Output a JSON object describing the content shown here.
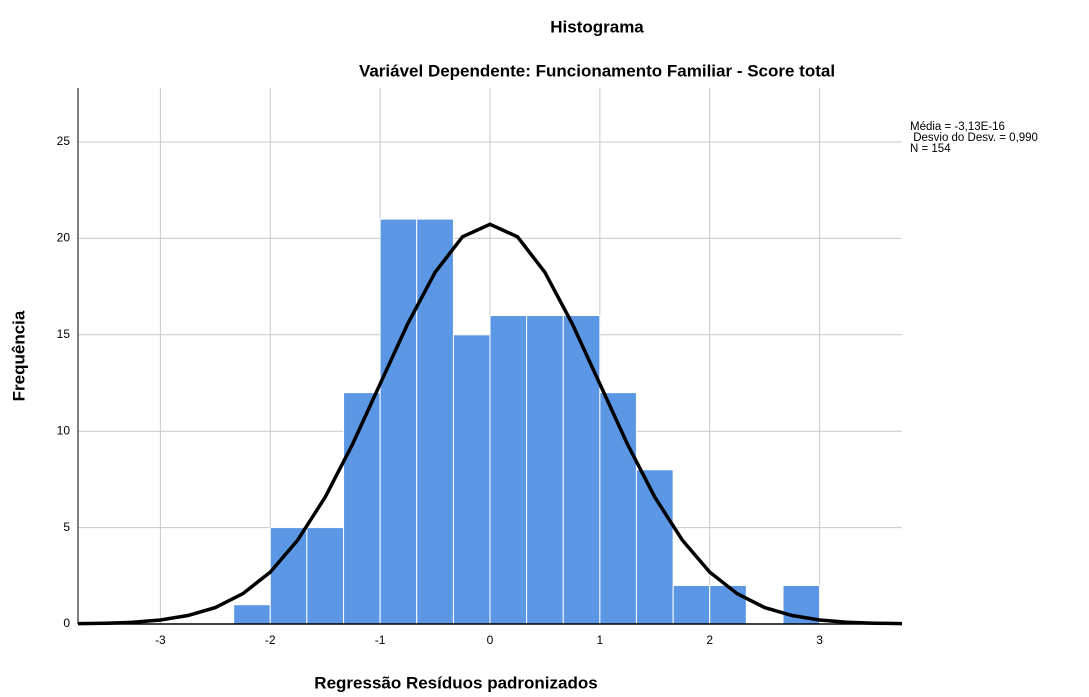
{
  "chart_data": {
    "type": "histogram",
    "title": "Histograma",
    "subtitle": "Variável Dependente: Funcionamento Familiar - Score total",
    "x_label": "Regressão Resíduos padronizados",
    "y_label": "Frequência",
    "bins": [
      -2.333,
      -2,
      -1.667,
      -1.333,
      -1,
      -0.667,
      -0.333,
      0,
      0.333,
      0.667,
      1,
      1.333,
      1.667,
      2,
      2.333,
      2.667,
      3
    ],
    "values": [
      1,
      5,
      5,
      12,
      21,
      21,
      15,
      16,
      16,
      16,
      12,
      8,
      2,
      2,
      0,
      2
    ],
    "color": "#5b97e5",
    "curve": {
      "color": "#000000",
      "x": [
        -3.75,
        -3.5,
        -3.25,
        -3,
        -2.75,
        -2.5,
        -2.25,
        -2,
        -1.75,
        -1.5,
        -1.25,
        -1,
        -0.75,
        -0.5,
        -0.25,
        0,
        0.25,
        0.5,
        0.75,
        1,
        1.25,
        1.5,
        1.75,
        2,
        2.25,
        2.5,
        2.75,
        3,
        3.25,
        3.5,
        3.75
      ],
      "values": [
        0.02,
        0.04,
        0.09,
        0.21,
        0.44,
        0.85,
        1.57,
        2.69,
        4.35,
        6.58,
        9.34,
        12.45,
        15.56,
        18.24,
        20.08,
        20.73,
        20.08,
        18.24,
        15.56,
        12.45,
        9.34,
        6.58,
        4.35,
        2.69,
        1.57,
        0.85,
        0.44,
        0.21,
        0.09,
        0.04,
        0.02
      ]
    },
    "stats": [
      "Média = -3,13E-16",
      " Desvio do Desv. = 0,990",
      "N = 154"
    ],
    "xlim": [
      -3.75,
      3.75
    ],
    "ylim": [
      0,
      27.8
    ],
    "xticks": [
      -3,
      -2,
      -1,
      0,
      1,
      2,
      3
    ],
    "yticks": [
      0,
      5,
      10,
      15,
      20,
      25
    ],
    "grid": true
  }
}
